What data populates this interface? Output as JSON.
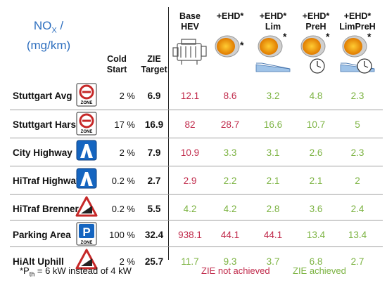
{
  "chart_data": {
    "type": "table",
    "title_line1": "NO",
    "title_sub": "X",
    "title_line1_suffix": " /",
    "title_line2": "(mg/km)",
    "label_columns": [
      {
        "key": "cold_start",
        "line1": "Cold",
        "line2": "Start"
      },
      {
        "key": "zie_target",
        "line1": "ZIE",
        "line2": "Target"
      }
    ],
    "columns": [
      {
        "line1": "Base",
        "line2": "HEV",
        "icon": "engine-icon",
        "star": ""
      },
      {
        "line1": "+EHD*",
        "line2": "",
        "icon": "catalyst-heater-icon",
        "star": "*"
      },
      {
        "line1": "+EHD*",
        "line2": "Lim",
        "icon": "catalyst-heater-limited-icon",
        "star": "*"
      },
      {
        "line1": "+EHD*",
        "line2": "PreH",
        "icon": "catalyst-heater-preheat-icon",
        "star": "*"
      },
      {
        "line1": "+EHD*",
        "line2": "LimPreH",
        "icon": "catalyst-heater-limited-preheat-icon",
        "star": "*"
      }
    ],
    "rows": [
      {
        "name": "Stuttgart Avg",
        "sign": "zone-sign-icon",
        "sign_text": "ZONE",
        "cold_start": "2 %",
        "zie_target": "6.9",
        "values": [
          "12.1",
          "8.6",
          "3.2",
          "4.8",
          "2.3"
        ],
        "achieved": [
          false,
          false,
          true,
          true,
          true
        ]
      },
      {
        "name": "Stuttgart Harsh",
        "sign": "zone-sign-icon",
        "sign_text": "ZONE",
        "cold_start": "17 %",
        "zie_target": "16.9",
        "values": [
          "82",
          "28.7",
          "16.6",
          "10.7",
          "5"
        ],
        "achieved": [
          false,
          false,
          true,
          true,
          true
        ]
      },
      {
        "name": "City Highway",
        "sign": "highway-sign-icon",
        "sign_text": "",
        "cold_start": "2 %",
        "zie_target": "7.9",
        "values": [
          "10.9",
          "3.3",
          "3.1",
          "2.6",
          "2.3"
        ],
        "achieved": [
          false,
          true,
          true,
          true,
          true
        ]
      },
      {
        "name": "HiTraf Highway",
        "sign": "highway-sign-icon",
        "sign_text": "",
        "cold_start": "0.2 %",
        "zie_target": "2.7",
        "values": [
          "2.9",
          "2.2",
          "2.1",
          "2.1",
          "2"
        ],
        "achieved": [
          false,
          true,
          true,
          true,
          true
        ]
      },
      {
        "name": "HiTraf Brenner",
        "sign": "steep-grade-sign-icon",
        "sign_text": "",
        "cold_start": "0.2 %",
        "zie_target": "5.5",
        "values": [
          "4.2",
          "4.2",
          "2.8",
          "3.6",
          "2.4"
        ],
        "achieved": [
          true,
          true,
          true,
          true,
          true
        ]
      },
      {
        "name": "Parking Area",
        "sign": "parking-zone-sign-icon",
        "sign_text": "ZONE",
        "cold_start": "100 %",
        "zie_target": "32.4",
        "values": [
          "938.1",
          "44.1",
          "44.1",
          "13.4",
          "13.4"
        ],
        "achieved": [
          false,
          false,
          false,
          true,
          true
        ]
      },
      {
        "name": "HiAlt Uphill",
        "sign": "steep-grade-sign-icon",
        "sign_text": "",
        "cold_start": "2 %",
        "zie_target": "25.7",
        "values": [
          "11.7",
          "9.3",
          "3.7",
          "6.8",
          "2.7"
        ],
        "achieved": [
          true,
          true,
          true,
          true,
          true
        ]
      }
    ],
    "footnote_prefix": "*P",
    "footnote_sub": "th",
    "footnote_suffix": " = 6 kW instead of 4 kW",
    "legend": [
      {
        "label": "ZIE not achieved",
        "color": "#c0294a"
      },
      {
        "label": "ZIE achieved",
        "color": "#7cb342"
      }
    ]
  },
  "colors": {
    "title": "#2e6fbf",
    "not_achieved": "#c0294a",
    "achieved": "#7cb342",
    "sign_red": "#c62828",
    "sign_blue": "#1565c0"
  }
}
